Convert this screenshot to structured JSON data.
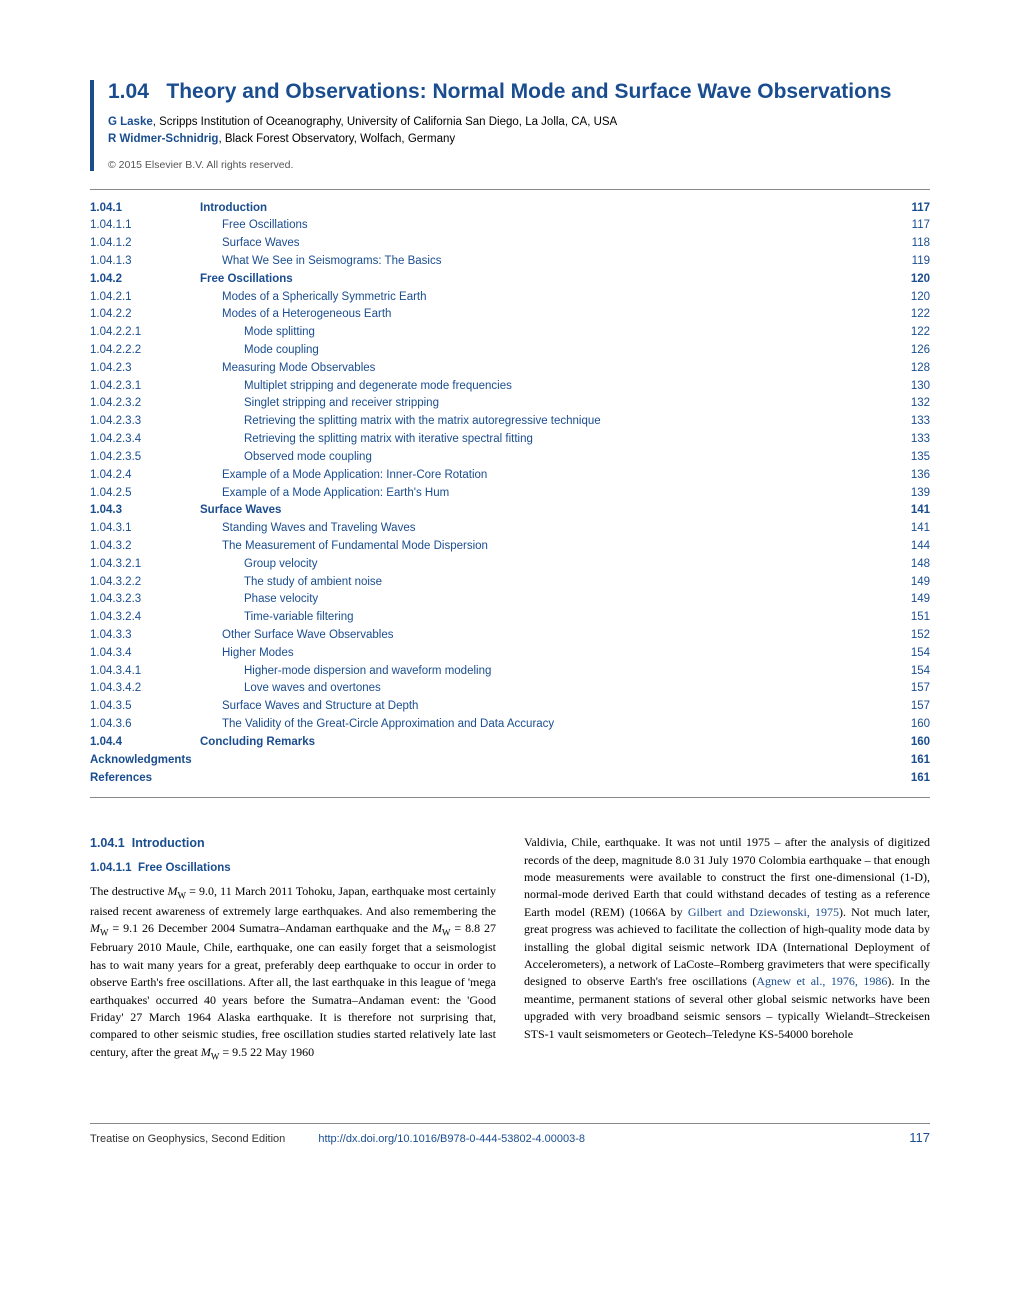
{
  "header": {
    "chapter_number": "1.04",
    "chapter_title": "Theory and Observations: Normal Mode and Surface Wave Observations",
    "authors": [
      {
        "name": "G Laske",
        "affiliation": ", Scripps Institution of Oceanography, University of California San Diego, La Jolla, CA, USA"
      },
      {
        "name": "R Widmer-Schnidrig",
        "affiliation": ", Black Forest Observatory, Wolfach, Germany"
      }
    ],
    "copyright": "© 2015 Elsevier B.V. All rights reserved."
  },
  "toc": [
    {
      "level": 1,
      "num": "1.04.1",
      "label": "Introduction",
      "page": "117"
    },
    {
      "level": 2,
      "num": "1.04.1.1",
      "label": "Free Oscillations",
      "page": "117"
    },
    {
      "level": 2,
      "num": "1.04.1.2",
      "label": "Surface Waves",
      "page": "118"
    },
    {
      "level": 2,
      "num": "1.04.1.3",
      "label": "What We See in Seismograms: The Basics",
      "page": "119"
    },
    {
      "level": 1,
      "num": "1.04.2",
      "label": "Free Oscillations",
      "page": "120"
    },
    {
      "level": 2,
      "num": "1.04.2.1",
      "label": "Modes of a Spherically Symmetric Earth",
      "page": "120"
    },
    {
      "level": 2,
      "num": "1.04.2.2",
      "label": "Modes of a Heterogeneous Earth",
      "page": "122"
    },
    {
      "level": 3,
      "num": "1.04.2.2.1",
      "label": "Mode splitting",
      "page": "122"
    },
    {
      "level": 3,
      "num": "1.04.2.2.2",
      "label": "Mode coupling",
      "page": "126"
    },
    {
      "level": 2,
      "num": "1.04.2.3",
      "label": "Measuring Mode Observables",
      "page": "128"
    },
    {
      "level": 3,
      "num": "1.04.2.3.1",
      "label": "Multiplet stripping and degenerate mode frequencies",
      "page": "130"
    },
    {
      "level": 3,
      "num": "1.04.2.3.2",
      "label": "Singlet stripping and receiver stripping",
      "page": "132"
    },
    {
      "level": 3,
      "num": "1.04.2.3.3",
      "label": "Retrieving the splitting matrix with the matrix autoregressive technique",
      "page": "133"
    },
    {
      "level": 3,
      "num": "1.04.2.3.4",
      "label": "Retrieving the splitting matrix with iterative spectral fitting",
      "page": "133"
    },
    {
      "level": 3,
      "num": "1.04.2.3.5",
      "label": "Observed mode coupling",
      "page": "135"
    },
    {
      "level": 2,
      "num": "1.04.2.4",
      "label": "Example of a Mode Application: Inner-Core Rotation",
      "page": "136"
    },
    {
      "level": 2,
      "num": "1.04.2.5",
      "label": "Example of a Mode Application: Earth's Hum",
      "page": "139"
    },
    {
      "level": 1,
      "num": "1.04.3",
      "label": "Surface Waves",
      "page": "141"
    },
    {
      "level": 2,
      "num": "1.04.3.1",
      "label": "Standing Waves and Traveling Waves",
      "page": "141"
    },
    {
      "level": 2,
      "num": "1.04.3.2",
      "label": "The Measurement of Fundamental Mode Dispersion",
      "page": "144"
    },
    {
      "level": 3,
      "num": "1.04.3.2.1",
      "label": "Group velocity",
      "page": "148"
    },
    {
      "level": 3,
      "num": "1.04.3.2.2",
      "label": "The study of ambient noise",
      "page": "149"
    },
    {
      "level": 3,
      "num": "1.04.3.2.3",
      "label": "Phase velocity",
      "page": "149"
    },
    {
      "level": 3,
      "num": "1.04.3.2.4",
      "label": "Time-variable filtering",
      "page": "151"
    },
    {
      "level": 2,
      "num": "1.04.3.3",
      "label": "Other Surface Wave Observables",
      "page": "152"
    },
    {
      "level": 2,
      "num": "1.04.3.4",
      "label": "Higher Modes",
      "page": "154"
    },
    {
      "level": 3,
      "num": "1.04.3.4.1",
      "label": "Higher-mode dispersion and waveform modeling",
      "page": "154"
    },
    {
      "level": 3,
      "num": "1.04.3.4.2",
      "label": "Love waves and overtones",
      "page": "157"
    },
    {
      "level": 2,
      "num": "1.04.3.5",
      "label": "Surface Waves and Structure at Depth",
      "page": "157"
    },
    {
      "level": 2,
      "num": "1.04.3.6",
      "label": "The Validity of the Great-Circle Approximation and Data Accuracy",
      "page": "160"
    },
    {
      "level": 1,
      "num": "1.04.4",
      "label": "Concluding Remarks",
      "page": "160"
    },
    {
      "level": 0,
      "num": "Acknowledgments",
      "label": "",
      "page": "161"
    },
    {
      "level": 0,
      "num": "References",
      "label": "",
      "page": "161"
    }
  ],
  "section": {
    "h1_num": "1.04.1",
    "h1_label": "Introduction",
    "h2_num": "1.04.1.1",
    "h2_label": "Free Oscillations"
  },
  "body": {
    "col1": "The destructive M_W = 9.0, 11 March 2011 Tohoku, Japan, earthquake most certainly raised recent awareness of extremely large earthquakes. And also remembering the M_W = 9.1 26 December 2004 Sumatra–Andaman earthquake and the M_W = 8.8 27 February 2010 Maule, Chile, earthquake, one can easily forget that a seismologist has to wait many years for a great, preferably deep earthquake to occur in order to observe Earth's free oscillations. After all, the last earthquake in this league of 'mega earthquakes' occurred 40 years before the Sumatra–Andaman event: the 'Good Friday' 27 March 1964 Alaska earthquake. It is therefore not surprising that, compared to other seismic studies, free oscillation studies started relatively late last century, after the great M_W = 9.5 22 May 1960",
    "col2_pre": "Valdivia, Chile, earthquake. It was not until 1975 – after the analysis of digitized records of the deep, magnitude 8.0 31 July 1970 Colombia earthquake – that enough mode measurements were available to construct the first one-dimensional (1-D), normal-mode derived Earth that could withstand decades of testing as a reference Earth model (REM) (1066A by ",
    "ref1": "Gilbert and Dziewonski, 1975",
    "col2_mid": "). Not much later, great progress was achieved to facilitate the collection of high-quality mode data by installing the global digital seismic network IDA (International Deployment of Accelerometers), a network of LaCoste–Romberg gravimeters that were specifically designed to observe Earth's free oscillations (",
    "ref2": "Agnew et al., 1976, 1986",
    "col2_post": "). In the meantime, permanent stations of several other global seismic networks have been upgraded with very broadband seismic sensors – typically Wielandt–Streckeisen STS-1 vault seismometers or Geotech–Teledyne KS-54000 borehole"
  },
  "footer": {
    "left": "Treatise on Geophysics, Second Edition",
    "doi": "http://dx.doi.org/10.1016/B978-0-444-53802-4.00003-8",
    "page": "117"
  },
  "colors": {
    "primary": "#1a4d8f",
    "text": "#000000",
    "border": "#888888",
    "copyright": "#555555"
  }
}
